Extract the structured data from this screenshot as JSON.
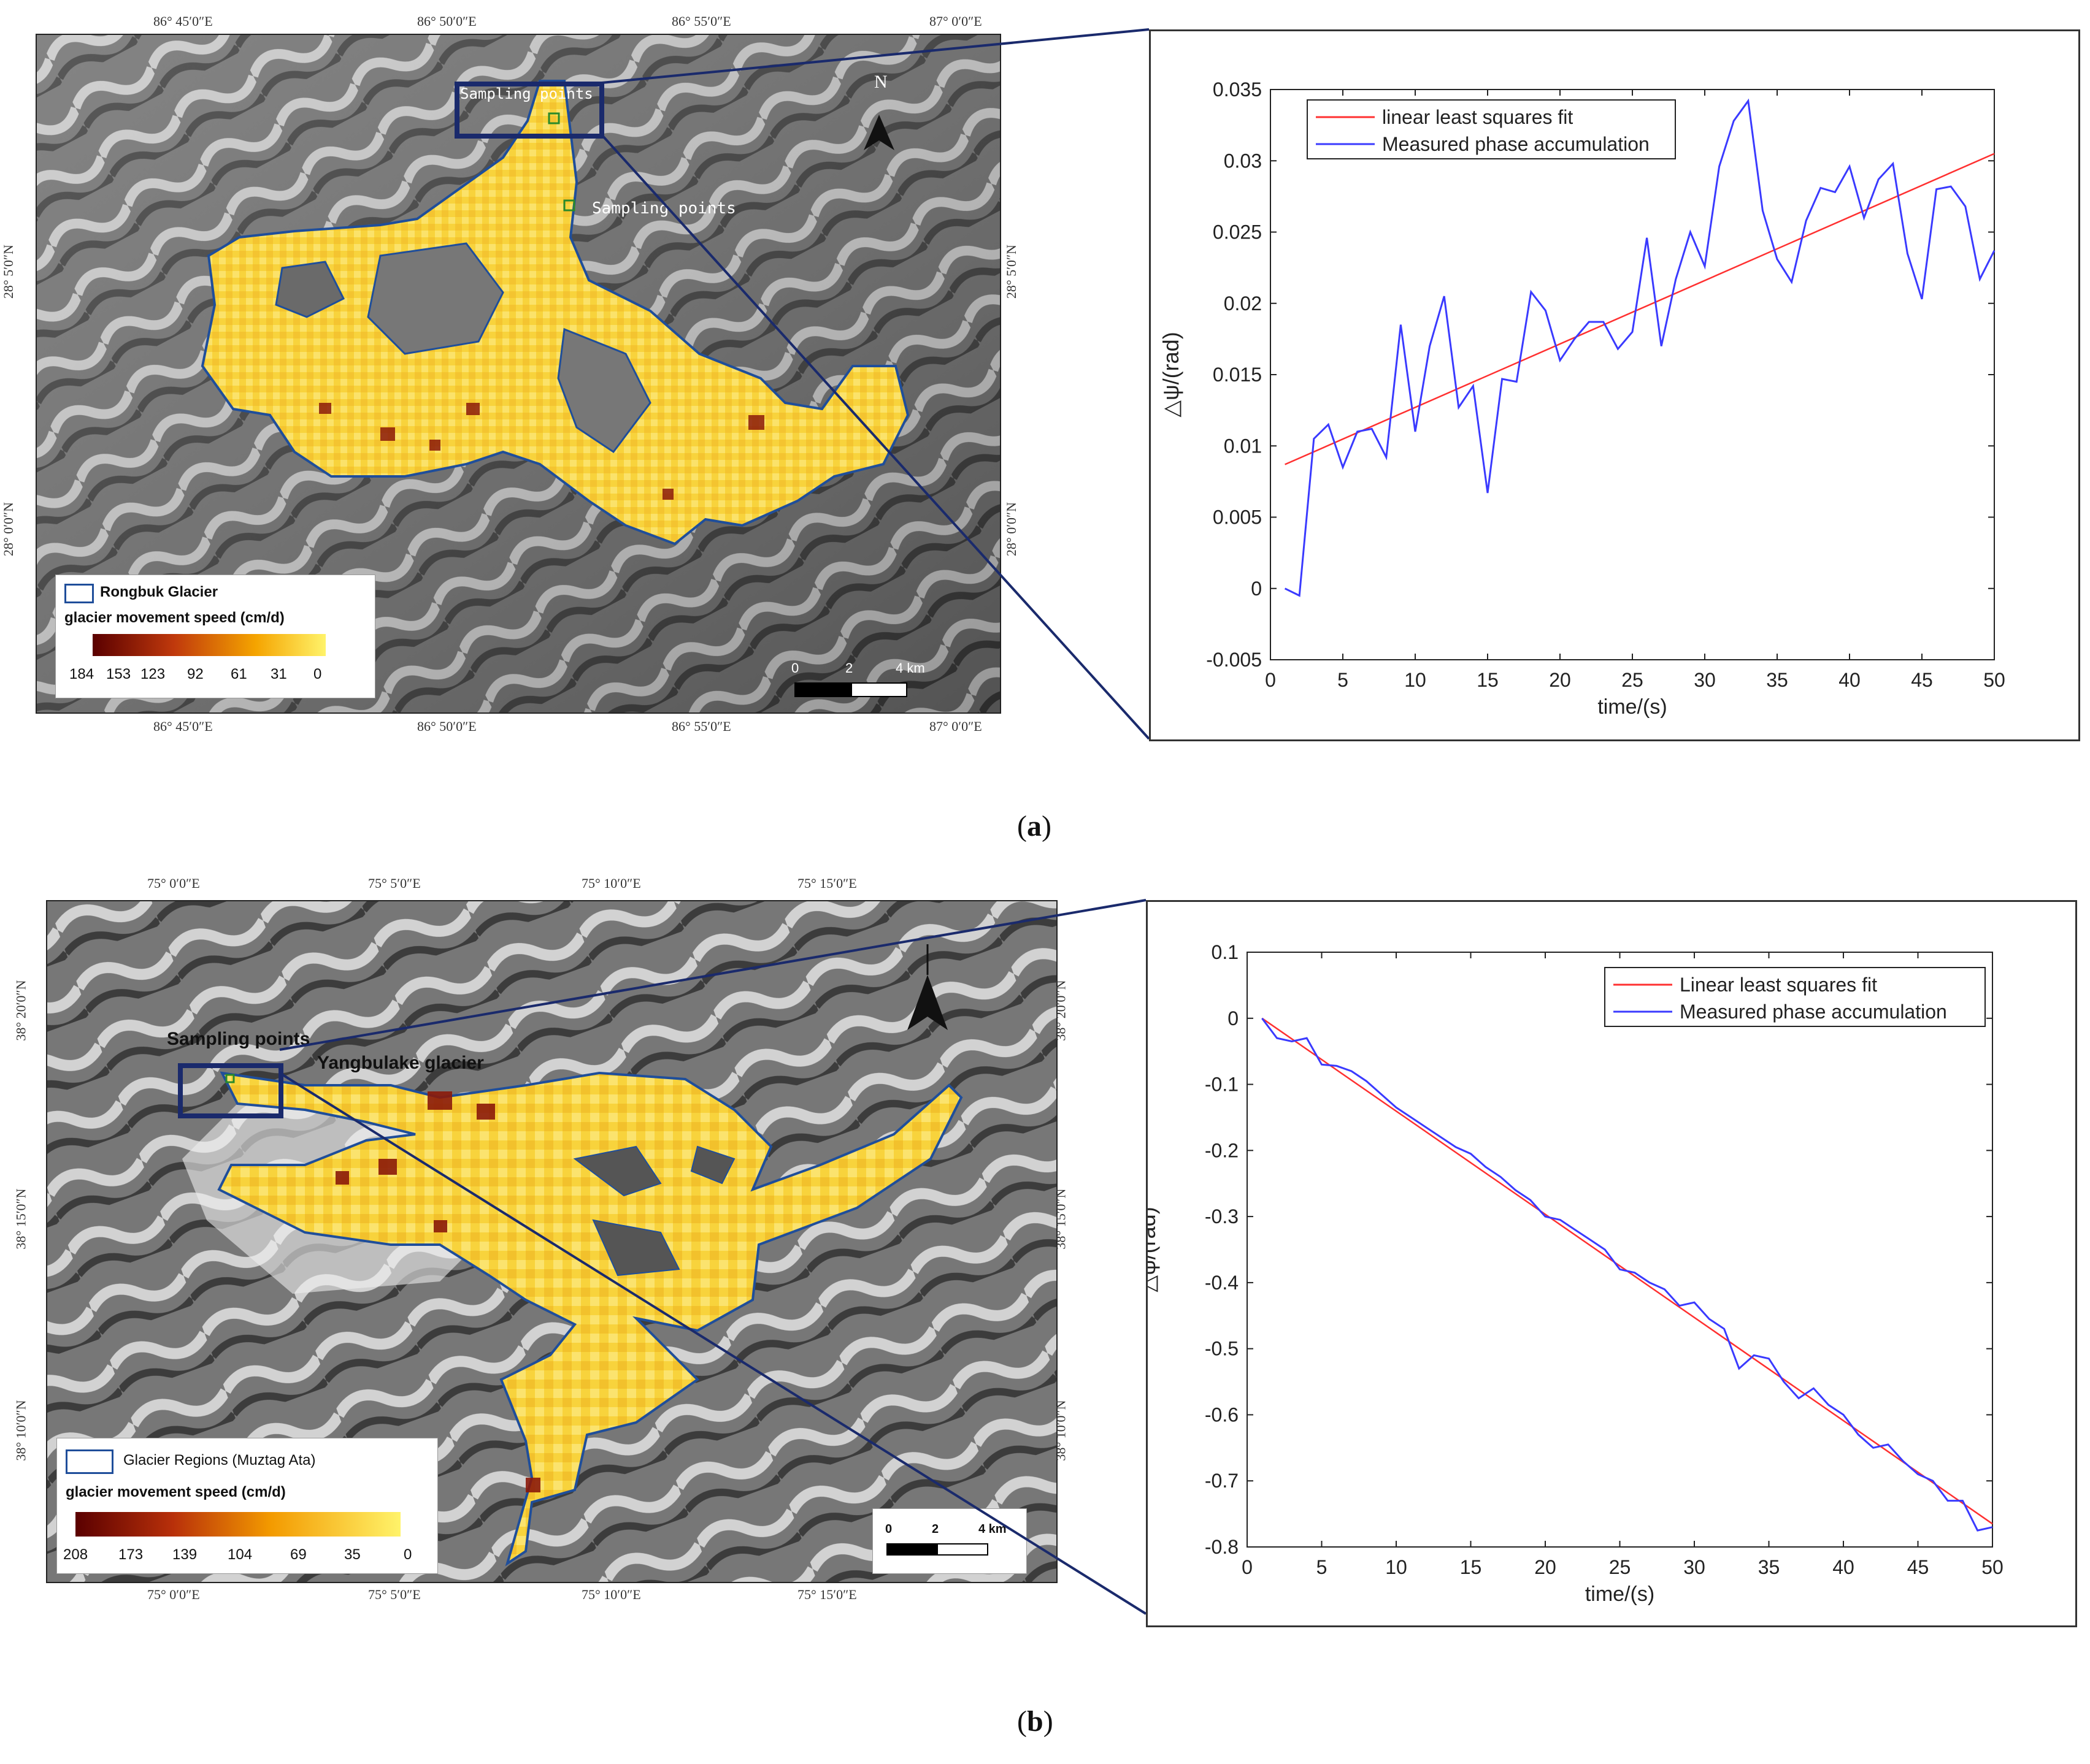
{
  "panel_a": {
    "caption_letter": "a",
    "map": {
      "top_coords": [
        "86° 45′0″E",
        "86° 50′0″E",
        "86° 55′0″E",
        "87° 0′0″E"
      ],
      "bottom_coords": [
        "86° 45′0″E",
        "86° 50′0″E",
        "86° 55′0″E",
        "87° 0′0″E"
      ],
      "left_coords": [
        "28° 5′0″N",
        "28° 0′0″N"
      ],
      "right_coords": [
        "28° 5′0″N",
        "28° 0′0″N"
      ],
      "sampling_label_1": "Sampling points",
      "sampling_label_2": "Sampling points",
      "north": "N",
      "legend": {
        "outline_label": "Rongbuk Glacier",
        "speed_title": "glacier movement speed (cm/d)",
        "ticks": [
          "184",
          "153",
          "123",
          "92",
          "61",
          "31",
          "0"
        ]
      },
      "scale": {
        "labels": [
          "0",
          "2",
          "4 km"
        ]
      },
      "colors": {
        "outline": "#1f4e9a",
        "glacier": "#f7d23a",
        "box": "#1a2a6c"
      }
    }
  },
  "panel_b": {
    "caption_letter": "b",
    "map": {
      "top_coords": [
        "75° 0′0″E",
        "75° 5′0″E",
        "75° 10′0″E",
        "75° 15′0″E"
      ],
      "bottom_coords": [
        "75° 0′0″E",
        "75° 5′0″E",
        "75° 10′0″E",
        "75° 15′0″E"
      ],
      "left_coords": [
        "38° 20′0″N",
        "38° 15′0″N",
        "38° 10′0″N"
      ],
      "right_coords": [
        "38° 20′0″N",
        "38° 15′0″N",
        "38° 10′0″N"
      ],
      "sampling_label": "Sampling points",
      "glacier_label": "Yangbulake glacier",
      "legend": {
        "outline_label": "Glacier Regions (Muztag Ata)",
        "speed_title": "glacier movement speed (cm/d)",
        "ticks": [
          "208",
          "173",
          "139",
          "104",
          "69",
          "35",
          "0"
        ]
      },
      "scale": {
        "labels": [
          "0",
          "2",
          "4 km"
        ]
      },
      "colors": {
        "outline": "#1f4e9a",
        "glacier": "#f7d23a",
        "box": "#1a2a6c"
      }
    }
  },
  "chart_data": [
    {
      "type": "line",
      "title": "",
      "xlabel": "time/(s)",
      "ylabel": "△ψ/(rad)",
      "xlim": [
        0,
        50
      ],
      "ylim": [
        -0.005,
        0.035
      ],
      "xticks": [
        0,
        5,
        10,
        15,
        20,
        25,
        30,
        35,
        40,
        45,
        50
      ],
      "yticks": [
        -0.005,
        0,
        0.005,
        0.01,
        0.015,
        0.02,
        0.025,
        0.03,
        0.035
      ],
      "ytick_labels": [
        "-0.005",
        "0",
        "0.005",
        "0.01",
        "0.015",
        "0.02",
        "0.025",
        "0.03",
        "0.035"
      ],
      "legend_position": "top-left",
      "series": [
        {
          "name": "linear least squares fit",
          "color": "#ff3030",
          "x": [
            1,
            50
          ],
          "y": [
            0.0087,
            0.0305
          ]
        },
        {
          "name": "Measured phase accumulation",
          "color": "#3a3aff",
          "x": [
            1,
            2,
            3,
            4,
            5,
            6,
            7,
            8,
            9,
            10,
            11,
            12,
            13,
            14,
            15,
            16,
            17,
            18,
            19,
            20,
            21,
            22,
            23,
            24,
            25,
            26,
            27,
            28,
            29,
            30,
            31,
            32,
            33,
            34,
            35,
            36,
            37,
            38,
            39,
            40,
            41,
            42,
            43,
            44,
            45,
            46,
            47,
            48,
            49,
            50
          ],
          "y": [
            0.0,
            -0.0005,
            0.0105,
            0.0115,
            0.0085,
            0.011,
            0.0112,
            0.0092,
            0.0185,
            0.011,
            0.017,
            0.0205,
            0.0127,
            0.0142,
            0.0067,
            0.0147,
            0.0145,
            0.0208,
            0.0195,
            0.016,
            0.0175,
            0.0187,
            0.0187,
            0.0168,
            0.018,
            0.0246,
            0.017,
            0.0217,
            0.025,
            0.0226,
            0.0296,
            0.0328,
            0.0342,
            0.0265,
            0.0231,
            0.0215,
            0.0258,
            0.0281,
            0.0278,
            0.0296,
            0.026,
            0.0287,
            0.0298,
            0.0235,
            0.0203,
            0.028,
            0.0282,
            0.0268,
            0.0217,
            0.0237
          ]
        }
      ]
    },
    {
      "type": "line",
      "title": "",
      "xlabel": "time/(s)",
      "ylabel": "△ψ/(rad)",
      "xlim": [
        0,
        50
      ],
      "ylim": [
        -0.8,
        0.1
      ],
      "xticks": [
        0,
        5,
        10,
        15,
        20,
        25,
        30,
        35,
        40,
        45,
        50
      ],
      "yticks": [
        -0.8,
        -0.7,
        -0.6,
        -0.5,
        -0.4,
        -0.3,
        -0.2,
        -0.1,
        0,
        0.1
      ],
      "ytick_labels": [
        "-0.8",
        "-0.7",
        "-0.6",
        "-0.5",
        "-0.4",
        "-0.3",
        "-0.2",
        "-0.1",
        "0",
        "0.1"
      ],
      "legend_position": "top-right",
      "series": [
        {
          "name": "Linear least squares fit",
          "color": "#ff3030",
          "x": [
            1,
            50
          ],
          "y": [
            0.0,
            -0.765
          ]
        },
        {
          "name": "Measured phase accumulation",
          "color": "#3a3aff",
          "x": [
            1,
            2,
            3,
            4,
            5,
            6,
            7,
            8,
            9,
            10,
            11,
            12,
            13,
            14,
            15,
            16,
            17,
            18,
            19,
            20,
            21,
            22,
            23,
            24,
            25,
            26,
            27,
            28,
            29,
            30,
            31,
            32,
            33,
            34,
            35,
            36,
            37,
            38,
            39,
            40,
            41,
            42,
            43,
            44,
            45,
            46,
            47,
            48,
            49,
            50
          ],
          "y": [
            0.0,
            -0.03,
            -0.035,
            -0.03,
            -0.07,
            -0.072,
            -0.08,
            -0.095,
            -0.115,
            -0.135,
            -0.15,
            -0.165,
            -0.18,
            -0.195,
            -0.205,
            -0.225,
            -0.24,
            -0.26,
            -0.275,
            -0.3,
            -0.305,
            -0.32,
            -0.335,
            -0.35,
            -0.38,
            -0.385,
            -0.4,
            -0.41,
            -0.435,
            -0.43,
            -0.455,
            -0.47,
            -0.53,
            -0.51,
            -0.515,
            -0.55,
            -0.575,
            -0.56,
            -0.585,
            -0.6,
            -0.63,
            -0.65,
            -0.645,
            -0.67,
            -0.69,
            -0.7,
            -0.73,
            -0.73,
            -0.775,
            -0.77
          ]
        }
      ]
    }
  ]
}
